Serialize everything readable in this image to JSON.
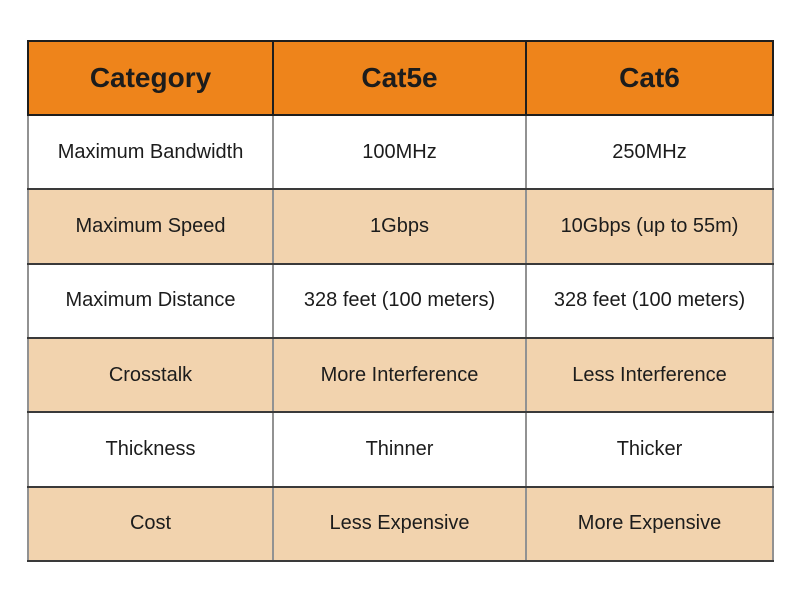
{
  "chart_data": {
    "type": "table",
    "columns": [
      "Category",
      "Cat5e",
      "Cat6"
    ],
    "rows": [
      [
        "Maximum Bandwidth",
        "100MHz",
        "250MHz"
      ],
      [
        "Maximum Speed",
        "1Gbps",
        "10Gbps (up to 55m)"
      ],
      [
        "Maximum Distance",
        "328 feet (100 meters)",
        "328 feet (100 meters)"
      ],
      [
        "Crosstalk",
        "More Interference",
        "Less Interference"
      ],
      [
        "Thickness",
        "Thinner",
        "Thicker"
      ],
      [
        "Cost",
        "Less Expensive",
        "More Expensive"
      ]
    ],
    "layout": {
      "grid": "on",
      "header_position": "top",
      "row_striping": "alternating white/tan starting white"
    },
    "colors": {
      "header_bg": "#EE841B",
      "alt_row_bg": "#F2D3AE",
      "row_bg": "#FFFFFF",
      "header_text": "#1C1C1C",
      "body_text": "#1C1C1C",
      "grid_dark": "#3A3A3A",
      "grid_gray": "#929292"
    }
  }
}
